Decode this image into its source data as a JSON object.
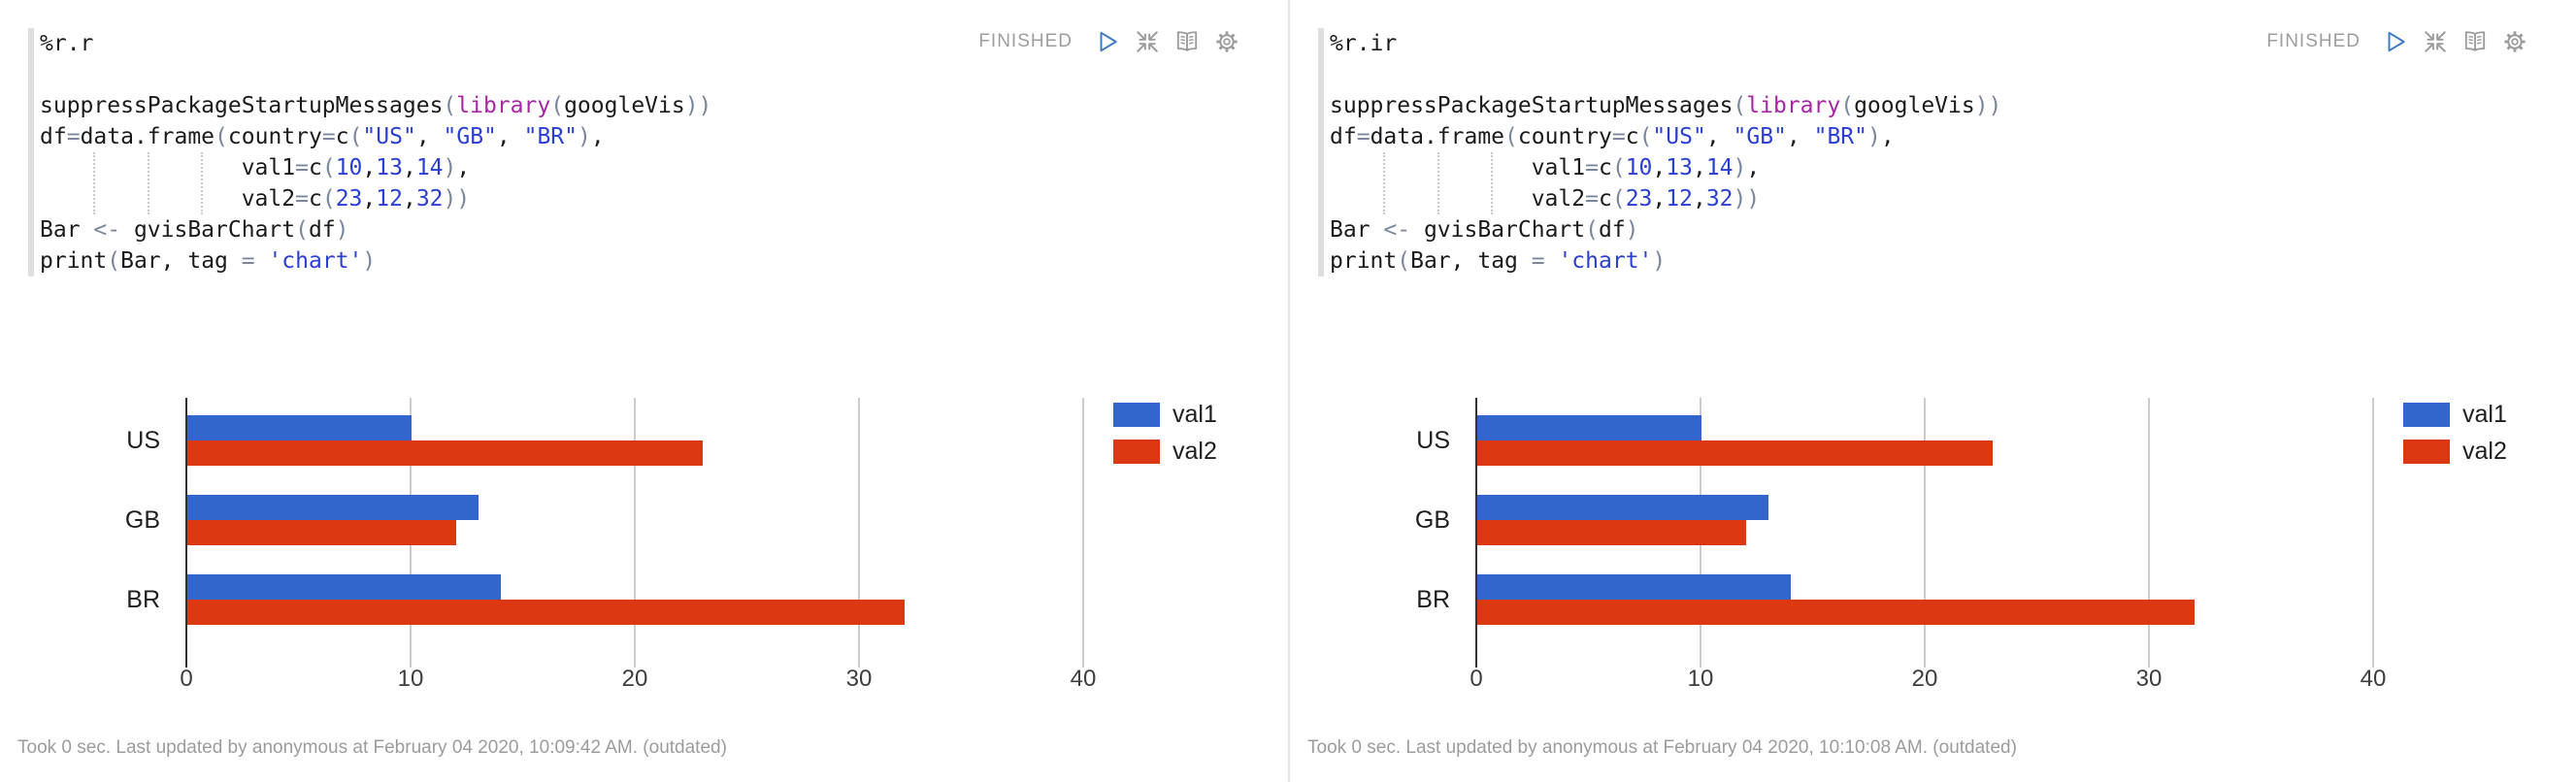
{
  "colors": {
    "series_blue": "#3366CC",
    "series_red": "#DC3912",
    "status_gray": "#9e9e9e",
    "run_icon_blue": "#3d7bc0",
    "icon_gray": "#9b9b9b",
    "keyword_magenta": "#a626a4",
    "literal_blue": "#2a3fd2"
  },
  "panels": [
    {
      "title_interpreter": "%r.r",
      "status": "FINISHED",
      "toolbar_icons": [
        "run-icon",
        "shrink-icon",
        "editor-book-icon",
        "settings-gear-icon"
      ],
      "code_lines": [
        [
          [
            "p",
            "%r.r"
          ]
        ],
        [],
        [
          [
            "p",
            "suppressPackageStartupMessages"
          ],
          [
            "o",
            "("
          ],
          [
            "k",
            "library"
          ],
          [
            "o",
            "("
          ],
          [
            "p",
            "googleVis"
          ],
          [
            "o",
            "))"
          ]
        ],
        [
          [
            "p",
            "df"
          ],
          [
            "o",
            "="
          ],
          [
            "p",
            "data.frame"
          ],
          [
            "o",
            "("
          ],
          [
            "p",
            "country"
          ],
          [
            "o",
            "="
          ],
          [
            "p",
            "c"
          ],
          [
            "o",
            "("
          ],
          [
            "s",
            "\"US\""
          ],
          [
            "p",
            ", "
          ],
          [
            "s",
            "\"GB\""
          ],
          [
            "p",
            ", "
          ],
          [
            "s",
            "\"BR\""
          ],
          [
            "o",
            ")"
          ],
          [
            "p",
            ","
          ]
        ],
        [
          [
            "p",
            "               val1"
          ],
          [
            "o",
            "="
          ],
          [
            "p",
            "c"
          ],
          [
            "o",
            "("
          ],
          [
            "s",
            "10"
          ],
          [
            "p",
            ","
          ],
          [
            "s",
            "13"
          ],
          [
            "p",
            ","
          ],
          [
            "s",
            "14"
          ],
          [
            "o",
            ")"
          ],
          [
            "p",
            ","
          ]
        ],
        [
          [
            "p",
            "               val2"
          ],
          [
            "o",
            "="
          ],
          [
            "p",
            "c"
          ],
          [
            "o",
            "("
          ],
          [
            "s",
            "23"
          ],
          [
            "p",
            ","
          ],
          [
            "s",
            "12"
          ],
          [
            "p",
            ","
          ],
          [
            "s",
            "32"
          ],
          [
            "o",
            "))"
          ]
        ],
        [
          [
            "p",
            "Bar "
          ],
          [
            "o",
            "<-"
          ],
          [
            "p",
            " gvisBarChart"
          ],
          [
            "o",
            "("
          ],
          [
            "p",
            "df"
          ],
          [
            "o",
            ")"
          ]
        ],
        [
          [
            "p",
            "print"
          ],
          [
            "o",
            "("
          ],
          [
            "p",
            "Bar, tag "
          ],
          [
            "o",
            "="
          ],
          [
            "p",
            " "
          ],
          [
            "s",
            "'chart'"
          ],
          [
            "o",
            ")"
          ]
        ]
      ],
      "footer": "Took 0 sec. Last updated by anonymous at February 04 2020, 10:09:42 AM. (outdated)"
    },
    {
      "title_interpreter": "%r.ir",
      "status": "FINISHED",
      "toolbar_icons": [
        "run-icon",
        "shrink-icon",
        "editor-book-icon",
        "settings-gear-icon"
      ],
      "code_lines": [
        [
          [
            "p",
            "%r.ir"
          ]
        ],
        [],
        [
          [
            "p",
            "suppressPackageStartupMessages"
          ],
          [
            "o",
            "("
          ],
          [
            "k",
            "library"
          ],
          [
            "o",
            "("
          ],
          [
            "p",
            "googleVis"
          ],
          [
            "o",
            "))"
          ]
        ],
        [
          [
            "p",
            "df"
          ],
          [
            "o",
            "="
          ],
          [
            "p",
            "data.frame"
          ],
          [
            "o",
            "("
          ],
          [
            "p",
            "country"
          ],
          [
            "o",
            "="
          ],
          [
            "p",
            "c"
          ],
          [
            "o",
            "("
          ],
          [
            "s",
            "\"US\""
          ],
          [
            "p",
            ", "
          ],
          [
            "s",
            "\"GB\""
          ],
          [
            "p",
            ", "
          ],
          [
            "s",
            "\"BR\""
          ],
          [
            "o",
            ")"
          ],
          [
            "p",
            ","
          ]
        ],
        [
          [
            "p",
            "               val1"
          ],
          [
            "o",
            "="
          ],
          [
            "p",
            "c"
          ],
          [
            "o",
            "("
          ],
          [
            "s",
            "10"
          ],
          [
            "p",
            ","
          ],
          [
            "s",
            "13"
          ],
          [
            "p",
            ","
          ],
          [
            "s",
            "14"
          ],
          [
            "o",
            ")"
          ],
          [
            "p",
            ","
          ]
        ],
        [
          [
            "p",
            "               val2"
          ],
          [
            "o",
            "="
          ],
          [
            "p",
            "c"
          ],
          [
            "o",
            "("
          ],
          [
            "s",
            "23"
          ],
          [
            "p",
            ","
          ],
          [
            "s",
            "12"
          ],
          [
            "p",
            ","
          ],
          [
            "s",
            "32"
          ],
          [
            "o",
            "))"
          ]
        ],
        [
          [
            "p",
            "Bar "
          ],
          [
            "o",
            "<-"
          ],
          [
            "p",
            " gvisBarChart"
          ],
          [
            "o",
            "("
          ],
          [
            "p",
            "df"
          ],
          [
            "o",
            ")"
          ]
        ],
        [
          [
            "p",
            "print"
          ],
          [
            "o",
            "("
          ],
          [
            "p",
            "Bar, tag "
          ],
          [
            "o",
            "="
          ],
          [
            "p",
            " "
          ],
          [
            "s",
            "'chart'"
          ],
          [
            "o",
            ")"
          ]
        ]
      ],
      "footer": "Took 0 sec. Last updated by anonymous at February 04 2020, 10:10:08 AM. (outdated)"
    }
  ],
  "chart_data": [
    {
      "type": "bar",
      "orientation": "horizontal",
      "categories": [
        "US",
        "GB",
        "BR"
      ],
      "series": [
        {
          "name": "val1",
          "color": "#3366CC",
          "values": [
            10,
            13,
            14
          ]
        },
        {
          "name": "val2",
          "color": "#DC3912",
          "values": [
            23,
            12,
            32
          ]
        }
      ],
      "x_ticks": [
        0,
        10,
        20,
        30,
        40
      ],
      "xlim": [
        0,
        45
      ],
      "grid": true,
      "legend_position": "right",
      "title": "",
      "xlabel": "",
      "ylabel": ""
    },
    {
      "type": "bar",
      "orientation": "horizontal",
      "categories": [
        "US",
        "GB",
        "BR"
      ],
      "series": [
        {
          "name": "val1",
          "color": "#3366CC",
          "values": [
            10,
            13,
            14
          ]
        },
        {
          "name": "val2",
          "color": "#DC3912",
          "values": [
            23,
            12,
            32
          ]
        }
      ],
      "x_ticks": [
        0,
        10,
        20,
        30,
        40
      ],
      "xlim": [
        0,
        45
      ],
      "grid": true,
      "legend_position": "right",
      "title": "",
      "xlabel": "",
      "ylabel": ""
    }
  ]
}
